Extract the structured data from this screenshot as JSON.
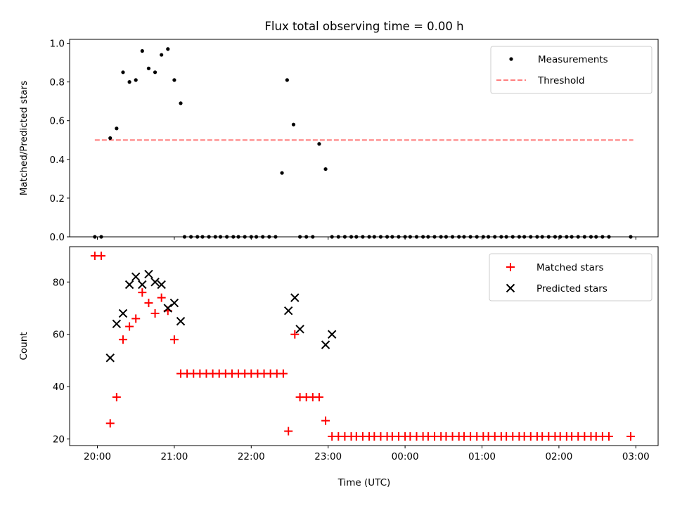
{
  "title": "Flux total observing time = 0.00 h",
  "colors": {
    "measurement": "#000000",
    "threshold": "#ff7f7f",
    "matched": "#ff0000",
    "predicted": "#000000"
  },
  "x_ticks": [
    "20:00",
    "21:00",
    "22:00",
    "23:00",
    "00:00",
    "01:00",
    "02:00",
    "03:00"
  ],
  "x_label": "Time (UTC)",
  "chart_data": [
    {
      "type": "scatter",
      "ylabel": "Matched/Predicted stars",
      "ylim": [
        0,
        1.02
      ],
      "yticks": [
        "0.0",
        "0.2",
        "0.4",
        "0.6",
        "0.8",
        "1.0"
      ],
      "legend_placement": "upper right",
      "threshold": {
        "name": "Threshold",
        "value": 0.5,
        "x_range": [
          "19:58",
          "02:58"
        ]
      },
      "series": [
        {
          "name": "Measurements",
          "x": [
            "19:58",
            "20:03",
            "20:10",
            "20:15",
            "20:20",
            "20:25",
            "20:30",
            "20:35",
            "20:40",
            "20:45",
            "20:50",
            "20:55",
            "21:00",
            "21:05",
            "21:08",
            "21:13",
            "21:18",
            "21:22",
            "21:27",
            "21:32",
            "21:36",
            "21:41",
            "21:46",
            "21:50",
            "21:55",
            "22:00",
            "22:04",
            "22:09",
            "22:14",
            "22:19",
            "22:24",
            "22:28",
            "22:33",
            "22:38",
            "22:43",
            "22:48",
            "22:53",
            "22:58",
            "23:03",
            "23:08",
            "23:13",
            "23:18",
            "23:22",
            "23:27",
            "23:32",
            "23:36",
            "23:41",
            "23:46",
            "23:50",
            "23:55",
            "00:00",
            "00:04",
            "00:09",
            "00:14",
            "00:18",
            "00:23",
            "00:28",
            "00:32",
            "00:37",
            "00:42",
            "00:46",
            "00:51",
            "00:56",
            "01:01",
            "01:05",
            "01:10",
            "01:15",
            "01:19",
            "01:24",
            "01:29",
            "01:33",
            "01:38",
            "01:43",
            "01:47",
            "01:52",
            "01:57",
            "02:01",
            "02:06",
            "02:10",
            "02:15",
            "02:20",
            "02:25",
            "02:29",
            "02:34",
            "02:39",
            "02:56"
          ],
          "y": [
            0,
            0,
            0.51,
            0.56,
            0.85,
            0.8,
            0.81,
            0.96,
            0.87,
            0.85,
            0.94,
            0.97,
            0.81,
            0.69,
            0,
            0,
            0,
            0,
            0,
            0,
            0,
            0,
            0,
            0,
            0,
            0,
            0,
            0,
            0,
            0,
            0.33,
            0.81,
            0.58,
            0,
            0,
            0,
            0.48,
            0.35,
            0,
            0,
            0,
            0,
            0,
            0,
            0,
            0,
            0,
            0,
            0,
            0,
            0,
            0,
            0,
            0,
            0,
            0,
            0,
            0,
            0,
            0,
            0,
            0,
            0,
            0,
            0,
            0,
            0,
            0,
            0,
            0,
            0,
            0,
            0,
            0,
            0,
            0,
            0,
            0,
            0,
            0,
            0,
            0,
            0,
            0,
            0,
            0
          ]
        }
      ]
    },
    {
      "type": "scatter",
      "ylabel": "Count",
      "ylim": [
        17.5,
        93.5
      ],
      "yticks": [
        "20",
        "40",
        "60",
        "80"
      ],
      "legend_placement": "upper right",
      "series": [
        {
          "name": "Matched stars",
          "x": [
            "19:58",
            "20:03",
            "20:10",
            "20:15",
            "20:20",
            "20:25",
            "20:30",
            "20:35",
            "20:40",
            "20:45",
            "20:50",
            "20:55",
            "21:00",
            "21:05",
            "21:10",
            "21:15",
            "21:20",
            "21:25",
            "21:30",
            "21:35",
            "21:40",
            "21:45",
            "21:50",
            "21:55",
            "22:00",
            "22:05",
            "22:10",
            "22:15",
            "22:20",
            "22:25",
            "22:29",
            "22:34",
            "22:38",
            "22:43",
            "22:48",
            "22:53",
            "22:58",
            "23:03",
            "23:08",
            "23:13",
            "23:18",
            "23:22",
            "23:27",
            "23:32",
            "23:36",
            "23:41",
            "23:46",
            "23:50",
            "23:55",
            "00:00",
            "00:04",
            "00:09",
            "00:14",
            "00:18",
            "00:23",
            "00:28",
            "00:32",
            "00:37",
            "00:42",
            "00:46",
            "00:51",
            "00:56",
            "01:01",
            "01:05",
            "01:10",
            "01:15",
            "01:19",
            "01:24",
            "01:29",
            "01:33",
            "01:38",
            "01:43",
            "01:47",
            "01:52",
            "01:57",
            "02:01",
            "02:06",
            "02:10",
            "02:15",
            "02:20",
            "02:25",
            "02:29",
            "02:34",
            "02:39",
            "02:56"
          ],
          "y": [
            90,
            90,
            26,
            36,
            58,
            63,
            66,
            76,
            72,
            68,
            74,
            69,
            58,
            45,
            45,
            45,
            45,
            45,
            45,
            45,
            45,
            45,
            45,
            45,
            45,
            45,
            45,
            45,
            45,
            45,
            23,
            60,
            36,
            36,
            36,
            36,
            27,
            21,
            21,
            21,
            21,
            21,
            21,
            21,
            21,
            21,
            21,
            21,
            21,
            21,
            21,
            21,
            21,
            21,
            21,
            21,
            21,
            21,
            21,
            21,
            21,
            21,
            21,
            21,
            21,
            21,
            21,
            21,
            21,
            21,
            21,
            21,
            21,
            21,
            21,
            21,
            21,
            21,
            21,
            21,
            21,
            21,
            21,
            21,
            21
          ]
        },
        {
          "name": "Predicted stars",
          "x": [
            "20:10",
            "20:15",
            "20:20",
            "20:25",
            "20:30",
            "20:35",
            "20:40",
            "20:45",
            "20:50",
            "20:55",
            "21:00",
            "21:05",
            "22:29",
            "22:34",
            "22:38",
            "22:58",
            "23:03"
          ],
          "y": [
            51,
            64,
            68,
            79,
            82,
            79,
            83,
            80,
            79,
            70,
            72,
            65,
            69,
            74,
            62,
            56,
            60
          ]
        }
      ]
    }
  ]
}
